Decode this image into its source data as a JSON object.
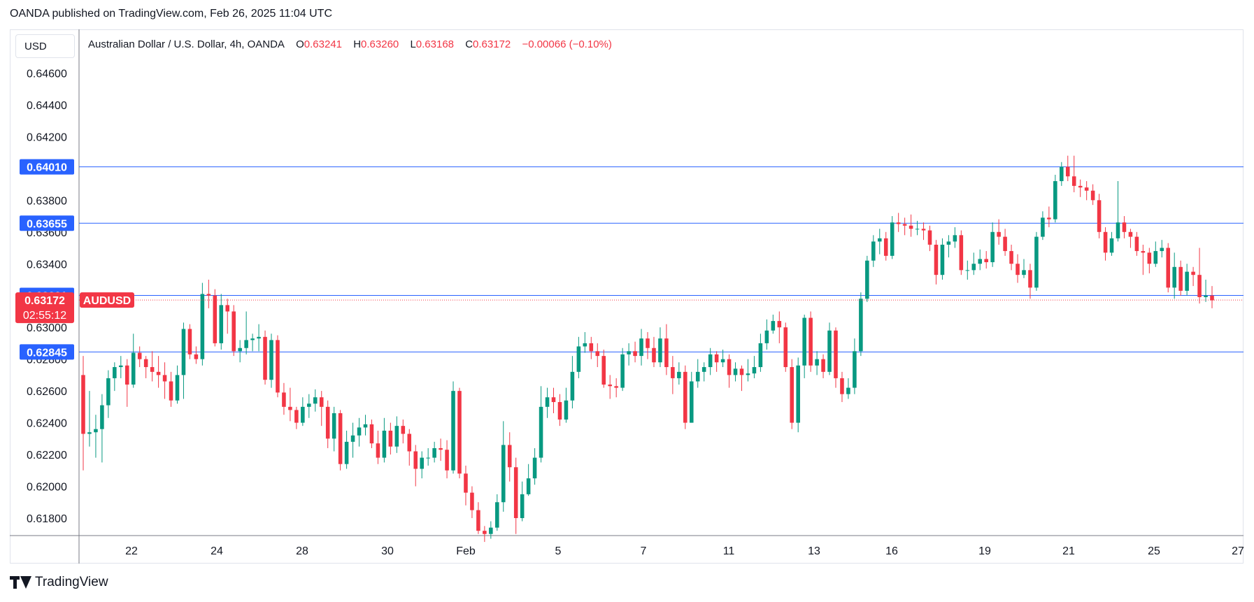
{
  "header": {
    "published": "OANDA published on TradingView.com, Feb 26, 2025 11:04 UTC"
  },
  "currency_button": "USD",
  "legend": {
    "symbol": "Australian Dollar / U.S. Dollar, 4h, OANDA",
    "o_label": "O",
    "o_value": "0.63241",
    "h_label": "H",
    "h_value": "0.63260",
    "l_label": "L",
    "l_value": "0.63168",
    "c_label": "C",
    "c_value": "0.63172",
    "change": "−0.00066 (−0.10%)"
  },
  "footer": {
    "brand": "TradingView"
  },
  "colors": {
    "up": "#089981",
    "down": "#f23645",
    "level": "#2962ff",
    "grid": "#e0e3eb"
  },
  "chart_data": {
    "type": "candlestick",
    "symbol": "AUDUSD",
    "timeframe": "4h",
    "ylim": [
      0.6169,
      0.6469
    ],
    "y_ticks": [
      "0.64600",
      "0.64400",
      "0.64200",
      "0.63800",
      "0.63600",
      "0.63400",
      "0.63000",
      "0.62800",
      "0.62600",
      "0.62400",
      "0.62200",
      "0.62000",
      "0.61800"
    ],
    "x_ticks": [
      "22",
      "24",
      "28",
      "30",
      "Feb",
      "5",
      "7",
      "11",
      "13",
      "16",
      "19",
      "21",
      "25",
      "27"
    ],
    "horizontal_levels": [
      "0.64010",
      "0.63655",
      "0.63201",
      "0.62845"
    ],
    "last_price": {
      "value": "0.63172",
      "label": "AUDUSD",
      "countdown": "02:55:12"
    },
    "candles": [
      [
        0.627,
        0.6233,
        0.6282,
        0.621
      ],
      [
        0.6233,
        0.6234,
        0.626,
        0.6225
      ],
      [
        0.6234,
        0.6236,
        0.6245,
        0.6218
      ],
      [
        0.6236,
        0.6251,
        0.6258,
        0.6215
      ],
      [
        0.6251,
        0.6268,
        0.6273,
        0.6243
      ],
      [
        0.6268,
        0.6275,
        0.6278,
        0.626
      ],
      [
        0.6275,
        0.6276,
        0.6282,
        0.6268
      ],
      [
        0.6276,
        0.6264,
        0.628,
        0.625
      ],
      [
        0.6264,
        0.6284,
        0.6296,
        0.6262
      ],
      [
        0.6284,
        0.628,
        0.6288,
        0.6275
      ],
      [
        0.628,
        0.6275,
        0.6282,
        0.6268
      ],
      [
        0.6275,
        0.6272,
        0.6285,
        0.6266
      ],
      [
        0.6272,
        0.627,
        0.6282,
        0.6262
      ],
      [
        0.627,
        0.6266,
        0.6278,
        0.6255
      ],
      [
        0.6266,
        0.6254,
        0.6272,
        0.625
      ],
      [
        0.6254,
        0.627,
        0.6276,
        0.6252
      ],
      [
        0.627,
        0.6299,
        0.6303,
        0.6255
      ],
      [
        0.6299,
        0.6283,
        0.6302,
        0.628
      ],
      [
        0.6283,
        0.628,
        0.6288,
        0.6277
      ],
      [
        0.628,
        0.6321,
        0.6328,
        0.6276
      ],
      [
        0.6321,
        0.632,
        0.633,
        0.6312
      ],
      [
        0.632,
        0.629,
        0.6324,
        0.6288
      ],
      [
        0.629,
        0.6314,
        0.6321,
        0.6286
      ],
      [
        0.6314,
        0.631,
        0.6318,
        0.6296
      ],
      [
        0.631,
        0.6285,
        0.6314,
        0.6282
      ],
      [
        0.6285,
        0.6287,
        0.6292,
        0.6278
      ],
      [
        0.6287,
        0.6292,
        0.631,
        0.6283
      ],
      [
        0.6292,
        0.6293,
        0.6296,
        0.6285
      ],
      [
        0.6293,
        0.6294,
        0.6302,
        0.6285
      ],
      [
        0.6294,
        0.6267,
        0.6298,
        0.6264
      ],
      [
        0.6267,
        0.6292,
        0.6296,
        0.6262
      ],
      [
        0.6292,
        0.6259,
        0.6295,
        0.6256
      ],
      [
        0.6259,
        0.625,
        0.6265,
        0.6245
      ],
      [
        0.625,
        0.6248,
        0.6262,
        0.6241
      ],
      [
        0.6248,
        0.624,
        0.625,
        0.6236
      ],
      [
        0.624,
        0.625,
        0.6256,
        0.6238
      ],
      [
        0.625,
        0.6252,
        0.6258,
        0.6243
      ],
      [
        0.6252,
        0.6256,
        0.6261,
        0.6247
      ],
      [
        0.6256,
        0.625,
        0.626,
        0.6238
      ],
      [
        0.625,
        0.623,
        0.6254,
        0.6224
      ],
      [
        0.623,
        0.6246,
        0.625,
        0.6222
      ],
      [
        0.6246,
        0.6214,
        0.6248,
        0.621
      ],
      [
        0.6214,
        0.6228,
        0.6235,
        0.6211
      ],
      [
        0.6228,
        0.6232,
        0.624,
        0.6218
      ],
      [
        0.6232,
        0.6237,
        0.6243,
        0.6225
      ],
      [
        0.6237,
        0.6239,
        0.6245,
        0.6232
      ],
      [
        0.6239,
        0.6227,
        0.6242,
        0.6224
      ],
      [
        0.6227,
        0.6218,
        0.6235,
        0.6214
      ],
      [
        0.6218,
        0.6235,
        0.6243,
        0.6215
      ],
      [
        0.6235,
        0.6225,
        0.624,
        0.622
      ],
      [
        0.6225,
        0.6238,
        0.6244,
        0.6221
      ],
      [
        0.6238,
        0.6233,
        0.6242,
        0.6227
      ],
      [
        0.6233,
        0.6222,
        0.6236,
        0.6213
      ],
      [
        0.6222,
        0.6211,
        0.6226,
        0.62
      ],
      [
        0.6211,
        0.6218,
        0.6222,
        0.6205
      ],
      [
        0.6218,
        0.6218,
        0.6224,
        0.6213
      ],
      [
        0.6218,
        0.6224,
        0.6228,
        0.6215
      ],
      [
        0.6224,
        0.6223,
        0.623,
        0.6216
      ],
      [
        0.6223,
        0.621,
        0.6229,
        0.6205
      ],
      [
        0.621,
        0.626,
        0.6266,
        0.6208
      ],
      [
        0.626,
        0.6208,
        0.6262,
        0.6205
      ],
      [
        0.6208,
        0.6196,
        0.6213,
        0.6188
      ],
      [
        0.6196,
        0.6185,
        0.62,
        0.618
      ],
      [
        0.6185,
        0.6172,
        0.619,
        0.617
      ],
      [
        0.6172,
        0.617,
        0.6175,
        0.6165
      ],
      [
        0.617,
        0.6174,
        0.6178,
        0.6167
      ],
      [
        0.6174,
        0.619,
        0.6195,
        0.6172
      ],
      [
        0.619,
        0.6226,
        0.6241,
        0.6184
      ],
      [
        0.6226,
        0.6212,
        0.6234,
        0.6203
      ],
      [
        0.6212,
        0.618,
        0.6218,
        0.617
      ],
      [
        0.618,
        0.6195,
        0.6203,
        0.6178
      ],
      [
        0.6195,
        0.6205,
        0.6214,
        0.6194
      ],
      [
        0.6205,
        0.6218,
        0.6224,
        0.6201
      ],
      [
        0.6218,
        0.625,
        0.6263,
        0.6215
      ],
      [
        0.625,
        0.6256,
        0.6262,
        0.6243
      ],
      [
        0.6256,
        0.6253,
        0.6262,
        0.6246
      ],
      [
        0.6253,
        0.6242,
        0.6258,
        0.6238
      ],
      [
        0.6242,
        0.6254,
        0.6262,
        0.624
      ],
      [
        0.6254,
        0.6272,
        0.6282,
        0.6249
      ],
      [
        0.6272,
        0.6288,
        0.6294,
        0.6268
      ],
      [
        0.6288,
        0.629,
        0.6297,
        0.6284
      ],
      [
        0.629,
        0.6285,
        0.6294,
        0.628
      ],
      [
        0.6285,
        0.6282,
        0.629,
        0.6275
      ],
      [
        0.6282,
        0.6264,
        0.6286,
        0.6262
      ],
      [
        0.6264,
        0.6263,
        0.627,
        0.6255
      ],
      [
        0.6263,
        0.6262,
        0.6268,
        0.6256
      ],
      [
        0.6262,
        0.6283,
        0.6287,
        0.626
      ],
      [
        0.6283,
        0.6285,
        0.629,
        0.6276
      ],
      [
        0.6285,
        0.6282,
        0.6291,
        0.6278
      ],
      [
        0.6282,
        0.6293,
        0.6299,
        0.6276
      ],
      [
        0.6293,
        0.6287,
        0.6297,
        0.628
      ],
      [
        0.6287,
        0.6278,
        0.6294,
        0.6275
      ],
      [
        0.6278,
        0.6293,
        0.63,
        0.6275
      ],
      [
        0.6293,
        0.6275,
        0.6302,
        0.627
      ],
      [
        0.6275,
        0.6268,
        0.6282,
        0.6258
      ],
      [
        0.6268,
        0.6272,
        0.6278,
        0.6264
      ],
      [
        0.6272,
        0.624,
        0.6276,
        0.6236
      ],
      [
        0.624,
        0.6266,
        0.6272,
        0.624
      ],
      [
        0.6266,
        0.6272,
        0.628,
        0.6262
      ],
      [
        0.6272,
        0.6275,
        0.6278,
        0.6266
      ],
      [
        0.6275,
        0.6283,
        0.6287,
        0.627
      ],
      [
        0.6283,
        0.6278,
        0.6285,
        0.6272
      ],
      [
        0.6278,
        0.628,
        0.6286,
        0.6275
      ],
      [
        0.628,
        0.627,
        0.6283,
        0.6262
      ],
      [
        0.627,
        0.6274,
        0.6278,
        0.6266
      ],
      [
        0.6274,
        0.627,
        0.6276,
        0.626
      ],
      [
        0.627,
        0.6271,
        0.628,
        0.6266
      ],
      [
        0.6271,
        0.6275,
        0.6282,
        0.6268
      ],
      [
        0.6275,
        0.629,
        0.6296,
        0.6272
      ],
      [
        0.629,
        0.6298,
        0.6305,
        0.6286
      ],
      [
        0.6298,
        0.6304,
        0.6308,
        0.6296
      ],
      [
        0.6304,
        0.63,
        0.631,
        0.629
      ],
      [
        0.63,
        0.6275,
        0.6303,
        0.6272
      ],
      [
        0.6275,
        0.624,
        0.628,
        0.6236
      ],
      [
        0.624,
        0.6276,
        0.6281,
        0.6234
      ],
      [
        0.6276,
        0.6306,
        0.6308,
        0.6268
      ],
      [
        0.6306,
        0.6276,
        0.631,
        0.6272
      ],
      [
        0.6276,
        0.628,
        0.6285,
        0.627
      ],
      [
        0.628,
        0.6272,
        0.6283,
        0.6268
      ],
      [
        0.6272,
        0.6298,
        0.6303,
        0.627
      ],
      [
        0.6298,
        0.6268,
        0.63,
        0.6262
      ],
      [
        0.6268,
        0.6258,
        0.6272,
        0.6253
      ],
      [
        0.6258,
        0.6262,
        0.6268,
        0.6255
      ],
      [
        0.6262,
        0.6285,
        0.6293,
        0.6258
      ],
      [
        0.6285,
        0.6318,
        0.6322,
        0.6282
      ],
      [
        0.6318,
        0.6342,
        0.6345,
        0.6316
      ],
      [
        0.6342,
        0.6354,
        0.6358,
        0.6338
      ],
      [
        0.6354,
        0.6356,
        0.6362,
        0.6346
      ],
      [
        0.6356,
        0.6345,
        0.636,
        0.6342
      ],
      [
        0.6345,
        0.6366,
        0.637,
        0.6343
      ],
      [
        0.6366,
        0.6365,
        0.6372,
        0.636
      ],
      [
        0.6365,
        0.6364,
        0.6369,
        0.6358
      ],
      [
        0.6364,
        0.6362,
        0.6371,
        0.6357
      ],
      [
        0.6362,
        0.6362,
        0.6367,
        0.6358
      ],
      [
        0.6362,
        0.6361,
        0.6366,
        0.6355
      ],
      [
        0.6361,
        0.6352,
        0.6364,
        0.6348
      ],
      [
        0.6352,
        0.6333,
        0.6355,
        0.6327
      ],
      [
        0.6333,
        0.6352,
        0.6356,
        0.633
      ],
      [
        0.6352,
        0.6354,
        0.6358,
        0.6344
      ],
      [
        0.6354,
        0.6358,
        0.6363,
        0.635
      ],
      [
        0.6358,
        0.6336,
        0.6361,
        0.6333
      ],
      [
        0.6336,
        0.6336,
        0.6342,
        0.633
      ],
      [
        0.6336,
        0.634,
        0.6347,
        0.6333
      ],
      [
        0.634,
        0.6343,
        0.6349,
        0.6336
      ],
      [
        0.6343,
        0.6341,
        0.6348,
        0.6337
      ],
      [
        0.6341,
        0.636,
        0.6366,
        0.6338
      ],
      [
        0.636,
        0.6357,
        0.6368,
        0.6352
      ],
      [
        0.6357,
        0.6348,
        0.6362,
        0.6345
      ],
      [
        0.6348,
        0.634,
        0.6352,
        0.6336
      ],
      [
        0.634,
        0.6333,
        0.6346,
        0.6328
      ],
      [
        0.6333,
        0.6336,
        0.6343,
        0.6331
      ],
      [
        0.6336,
        0.6325,
        0.634,
        0.6318
      ],
      [
        0.6325,
        0.6357,
        0.636,
        0.6323
      ],
      [
        0.6357,
        0.6369,
        0.6373,
        0.6355
      ],
      [
        0.6369,
        0.6368,
        0.6376,
        0.6363
      ],
      [
        0.6368,
        0.6392,
        0.6396,
        0.6366
      ],
      [
        0.6392,
        0.6401,
        0.6404,
        0.6389
      ],
      [
        0.6401,
        0.6395,
        0.6408,
        0.6392
      ],
      [
        0.6395,
        0.6389,
        0.6408,
        0.6385
      ],
      [
        0.6389,
        0.6388,
        0.6393,
        0.6382
      ],
      [
        0.6388,
        0.6386,
        0.6392,
        0.638
      ],
      [
        0.6386,
        0.638,
        0.639,
        0.6377
      ],
      [
        0.638,
        0.636,
        0.6384,
        0.6356
      ],
      [
        0.636,
        0.6347,
        0.6363,
        0.6342
      ],
      [
        0.6347,
        0.6356,
        0.636,
        0.6345
      ],
      [
        0.6356,
        0.6366,
        0.6392,
        0.6354
      ],
      [
        0.6366,
        0.636,
        0.637,
        0.6356
      ],
      [
        0.636,
        0.6357,
        0.6362,
        0.635
      ],
      [
        0.6357,
        0.6348,
        0.636,
        0.6345
      ],
      [
        0.6348,
        0.6347,
        0.6352,
        0.6333
      ],
      [
        0.6347,
        0.634,
        0.635,
        0.6334
      ],
      [
        0.634,
        0.6348,
        0.6354,
        0.6338
      ],
      [
        0.6348,
        0.635,
        0.6355,
        0.6344
      ],
      [
        0.635,
        0.6325,
        0.6353,
        0.6322
      ],
      [
        0.6325,
        0.6338,
        0.6347,
        0.6318
      ],
      [
        0.6338,
        0.6323,
        0.6342,
        0.632
      ],
      [
        0.6323,
        0.6335,
        0.634,
        0.632
      ],
      [
        0.6335,
        0.6333,
        0.6338,
        0.6326
      ],
      [
        0.6333,
        0.6319,
        0.635,
        0.6315
      ],
      [
        0.6319,
        0.632,
        0.633,
        0.6316
      ],
      [
        0.632,
        0.6317,
        0.6326,
        0.6312
      ]
    ]
  }
}
